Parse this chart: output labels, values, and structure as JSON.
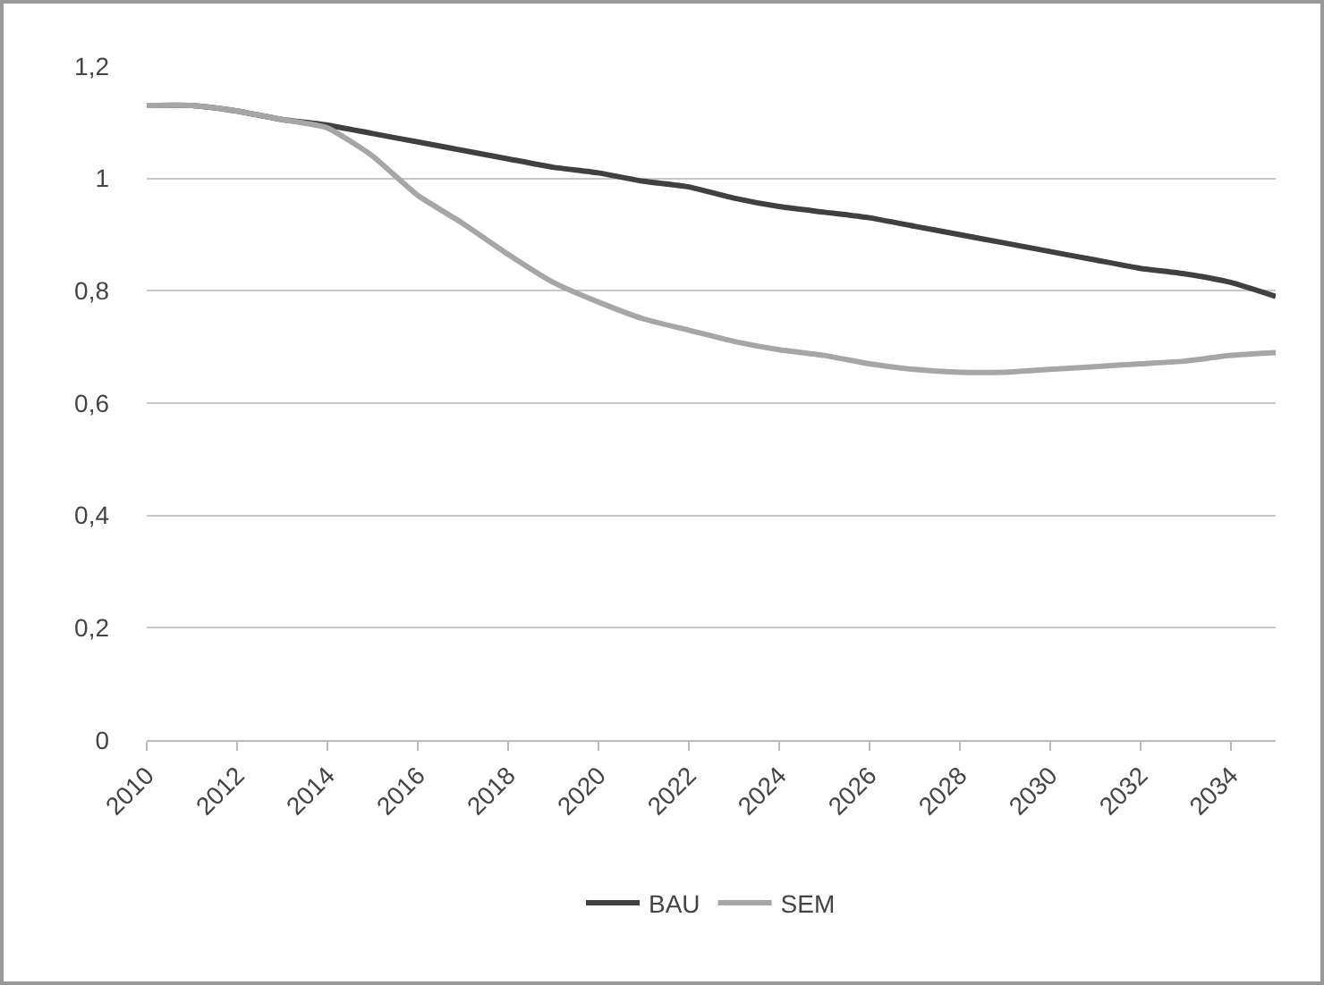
{
  "chart_data": {
    "type": "line",
    "x": [
      2010,
      2011,
      2012,
      2013,
      2014,
      2015,
      2016,
      2017,
      2018,
      2019,
      2020,
      2021,
      2022,
      2023,
      2024,
      2025,
      2026,
      2027,
      2028,
      2029,
      2030,
      2031,
      2032,
      2033,
      2034,
      2035
    ],
    "series": [
      {
        "name": "BAU",
        "color": "#404040",
        "values": [
          1.13,
          1.13,
          1.12,
          1.105,
          1.095,
          1.08,
          1.065,
          1.05,
          1.035,
          1.02,
          1.01,
          0.995,
          0.985,
          0.965,
          0.95,
          0.94,
          0.93,
          0.915,
          0.9,
          0.885,
          0.87,
          0.855,
          0.84,
          0.83,
          0.815,
          0.79
        ]
      },
      {
        "name": "SEM",
        "color": "#a6a6a6",
        "values": [
          1.13,
          1.13,
          1.12,
          1.105,
          1.09,
          1.04,
          0.97,
          0.92,
          0.865,
          0.815,
          0.78,
          0.75,
          0.73,
          0.71,
          0.695,
          0.685,
          0.67,
          0.66,
          0.655,
          0.655,
          0.66,
          0.665,
          0.67,
          0.675,
          0.685,
          0.69
        ]
      }
    ],
    "xlim": [
      2010,
      2035
    ],
    "xticks": [
      2010,
      2012,
      2014,
      2016,
      2018,
      2020,
      2022,
      2024,
      2026,
      2028,
      2030,
      2032,
      2034
    ],
    "ylim": [
      0,
      1.2
    ],
    "yticks": [
      0,
      {
        "value": 0.2,
        "label": "0,2"
      },
      {
        "value": 0.4,
        "label": "0,4"
      },
      {
        "value": 0.6,
        "label": "0,6"
      },
      {
        "value": 0.8,
        "label": "0,8"
      },
      1,
      {
        "value": 1.2,
        "label": "1,2"
      }
    ],
    "grid": "y",
    "legend": "bottom",
    "marker": "none",
    "line_style": "solid"
  }
}
